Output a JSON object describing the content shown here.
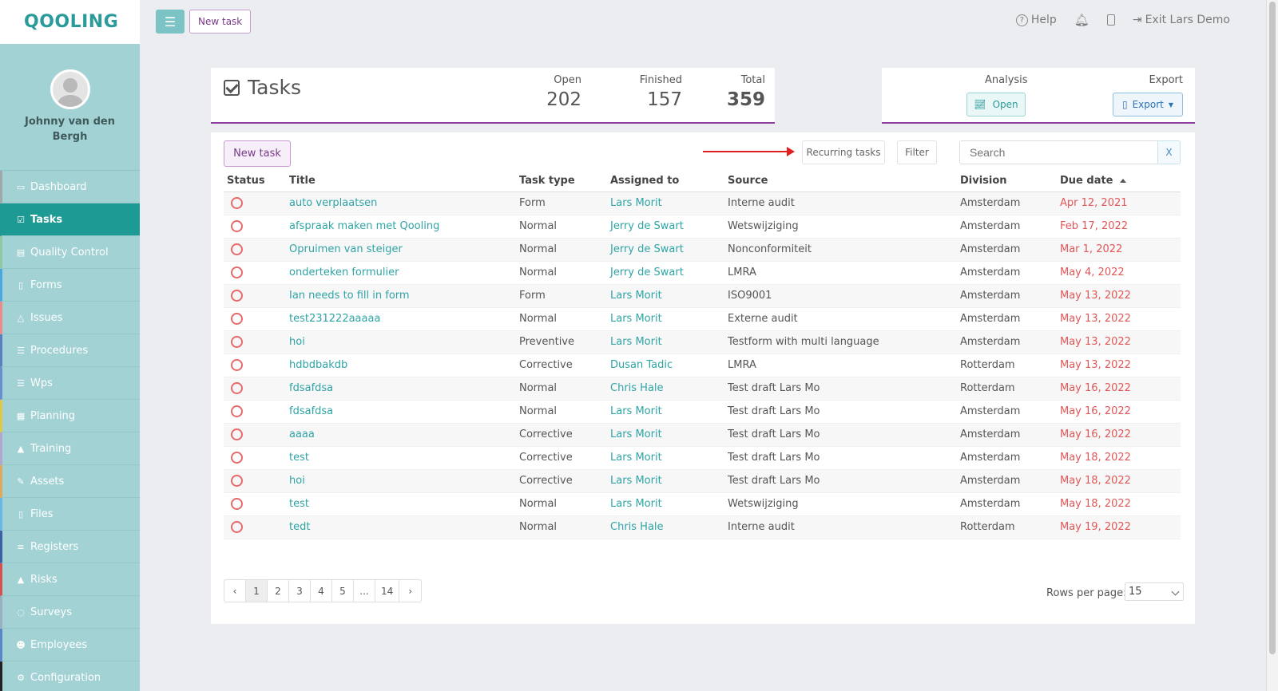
{
  "brand": {
    "logo": "QOOLING"
  },
  "profile": {
    "name": "Johnny van den Bergh"
  },
  "sidebar": {
    "items": [
      {
        "label": "Dashboard",
        "icon": "monitor-icon",
        "glyph": "▭",
        "color": "#9fa9ab",
        "active": false
      },
      {
        "label": "Tasks",
        "icon": "check-square-icon",
        "glyph": "☑",
        "color": "#1e9a94",
        "active": true
      },
      {
        "label": "Quality Control",
        "icon": "book-icon",
        "glyph": "▤",
        "color": "#8fc9a4",
        "active": false
      },
      {
        "label": "Forms",
        "icon": "file-icon",
        "glyph": "▯",
        "color": "#4aa8e0",
        "active": false
      },
      {
        "label": "Issues",
        "icon": "bell-icon",
        "glyph": "△",
        "color": "#f08a8a",
        "active": false
      },
      {
        "label": "Procedures",
        "icon": "list-icon",
        "glyph": "☰",
        "color": "#5b7fbf",
        "active": false
      },
      {
        "label": "Wps",
        "icon": "list-alt-icon",
        "glyph": "☰",
        "color": "#6a8fd0",
        "active": false
      },
      {
        "label": "Planning",
        "icon": "calendar-icon",
        "glyph": "▦",
        "color": "#e0c94a",
        "active": false
      },
      {
        "label": "Training",
        "icon": "graduation-cap-icon",
        "glyph": "▲",
        "color": "#b0a8cf",
        "active": false
      },
      {
        "label": "Assets",
        "icon": "wrench-icon",
        "glyph": "✎",
        "color": "#e0a85a",
        "active": false
      },
      {
        "label": "Files",
        "icon": "document-icon",
        "glyph": "▯",
        "color": "#68b8e8",
        "active": false
      },
      {
        "label": "Registers",
        "icon": "bars-icon",
        "glyph": "≡",
        "color": "#3c5fa6",
        "active": false
      },
      {
        "label": "Risks",
        "icon": "warning-icon",
        "glyph": "▲",
        "color": "#d84f4f",
        "active": false
      },
      {
        "label": "Surveys",
        "icon": "comment-icon",
        "glyph": "◌",
        "color": "#9ab0c0",
        "active": false
      },
      {
        "label": "Employees",
        "icon": "users-icon",
        "glyph": "☻",
        "color": "#5a86c8",
        "active": false
      },
      {
        "label": "Configuration",
        "icon": "gear-icon",
        "glyph": "⚙",
        "color": "#222222",
        "active": false
      }
    ]
  },
  "topbar": {
    "new_task": "New task",
    "help": "Help",
    "exit": "Exit Lars Demo"
  },
  "header": {
    "title": "Tasks",
    "stats": {
      "open_label": "Open",
      "open_value": "202",
      "finished_label": "Finished",
      "finished_value": "157",
      "total_label": "Total",
      "total_value": "359"
    },
    "analysis_label": "Analysis",
    "analysis_button": "Open",
    "export_label": "Export",
    "export_button": "Export"
  },
  "toolbar": {
    "new_task": "New task",
    "recurring": "Recurring tasks",
    "filter": "Filter",
    "search_placeholder": "Search",
    "clear": "X"
  },
  "table": {
    "columns": [
      "Status",
      "Title",
      "Task type",
      "Assigned to",
      "Source",
      "Division",
      "Due date"
    ],
    "rows": [
      [
        "auto verplaatsen",
        "Form",
        "Lars Morit",
        "Interne audit",
        "Amsterdam",
        "Apr 12, 2021"
      ],
      [
        "afspraak maken met Qooling",
        "Normal",
        "Jerry de Swart",
        "Wetswijziging",
        "Amsterdam",
        "Feb 17, 2022"
      ],
      [
        "Opruimen van steiger",
        "Normal",
        "Jerry de Swart",
        "Nonconformiteit",
        "Amsterdam",
        "Mar 1, 2022"
      ],
      [
        "onderteken formulier",
        "Normal",
        "Jerry de Swart",
        "LMRA",
        "Amsterdam",
        "May 4, 2022"
      ],
      [
        "Ian needs to fill in form",
        "Form",
        "Lars Morit",
        "ISO9001",
        "Amsterdam",
        "May 13, 2022"
      ],
      [
        "test231222aaaaa",
        "Normal",
        "Lars Morit",
        "Externe audit",
        "Amsterdam",
        "May 13, 2022"
      ],
      [
        "hoi",
        "Preventive",
        "Lars Morit",
        "Testform with multi language",
        "Amsterdam",
        "May 13, 2022"
      ],
      [
        "hdbdbakdb",
        "Corrective",
        "Dusan Tadic",
        "LMRA",
        "Rotterdam",
        "May 13, 2022"
      ],
      [
        "fdsafdsa",
        "Normal",
        "Chris Hale",
        "Test draft Lars Mo",
        "Rotterdam",
        "May 16, 2022"
      ],
      [
        "fdsafdsa",
        "Normal",
        "Lars Morit",
        "Test draft Lars Mo",
        "Amsterdam",
        "May 16, 2022"
      ],
      [
        "aaaa",
        "Corrective",
        "Lars Morit",
        "Test draft Lars Mo",
        "Amsterdam",
        "May 16, 2022"
      ],
      [
        "test",
        "Corrective",
        "Lars Morit",
        "Test draft Lars Mo",
        "Amsterdam",
        "May 18, 2022"
      ],
      [
        "hoi",
        "Corrective",
        "Lars Morit",
        "Test draft Lars Mo",
        "Amsterdam",
        "May 18, 2022"
      ],
      [
        "test",
        "Normal",
        "Lars Morit",
        "Wetswijziging",
        "Amsterdam",
        "May 18, 2022"
      ],
      [
        "tedt",
        "Normal",
        "Chris Hale",
        "Interne audit",
        "Rotterdam",
        "May 19, 2022"
      ]
    ]
  },
  "pagination": {
    "pages": [
      "‹",
      "1",
      "2",
      "3",
      "4",
      "5",
      "...",
      "14",
      "›"
    ],
    "active": "1",
    "rows_label": "Rows per page:",
    "rows_value": "15"
  },
  "colors": {
    "accent": "#1e9a94",
    "link": "#2fa4a6",
    "due": "#e25656",
    "purple": "#8a3d9a"
  }
}
